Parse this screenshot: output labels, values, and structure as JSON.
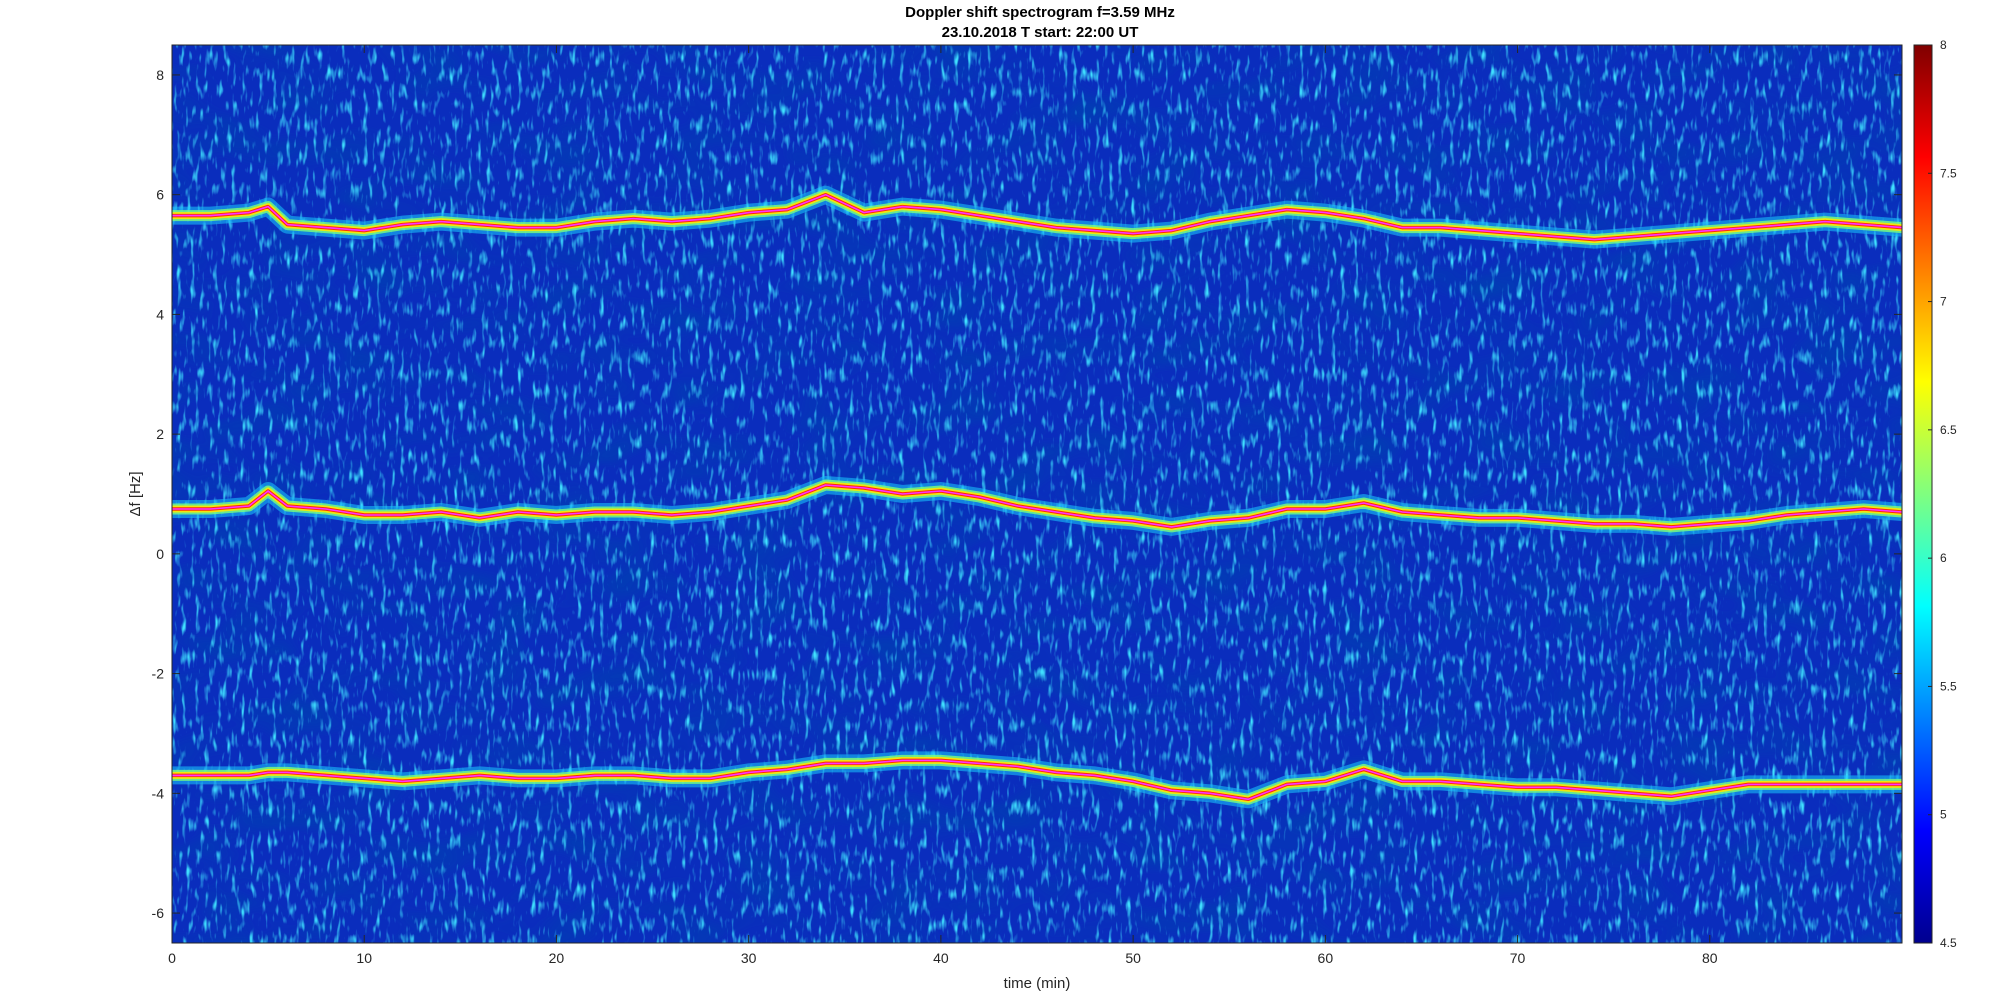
{
  "chart_data": {
    "type": "heatmap",
    "title_line1": "Doppler shift spectrogram f=3.59 MHz",
    "title_line2": "23.10.2018    T start: 22:00 UT",
    "xlabel": "time (min)",
    "ylabel": "Δf [Hz]",
    "xlim": [
      0,
      90
    ],
    "ylim": [
      -6.5,
      8.5
    ],
    "xticks": [
      0,
      10,
      20,
      30,
      40,
      50,
      60,
      70,
      80
    ],
    "yticks": [
      -6,
      -4,
      -2,
      0,
      2,
      4,
      6,
      8
    ],
    "colormap": "jet",
    "clim": [
      4.5,
      8
    ],
    "colorbar_ticks": [
      4.5,
      5,
      5.5,
      6,
      6.5,
      7,
      7.5,
      8
    ],
    "background_color": "#0a2dbd",
    "trace_color": "#ff33ff",
    "traces": [
      {
        "time": [
          0,
          2,
          4,
          5,
          6,
          8,
          10,
          12,
          14,
          16,
          18,
          20,
          22,
          24,
          26,
          28,
          30,
          32,
          34,
          36,
          38,
          40,
          42,
          44,
          46,
          48,
          50,
          52,
          54,
          56,
          58,
          60,
          62,
          64,
          66,
          68,
          70,
          72,
          74,
          76,
          78,
          80,
          82,
          84,
          86,
          88,
          90
        ],
        "df": [
          5.65,
          5.65,
          5.7,
          5.8,
          5.5,
          5.45,
          5.4,
          5.5,
          5.55,
          5.5,
          5.45,
          5.45,
          5.55,
          5.6,
          5.55,
          5.6,
          5.7,
          5.75,
          6.0,
          5.7,
          5.8,
          5.75,
          5.65,
          5.55,
          5.45,
          5.4,
          5.35,
          5.4,
          5.55,
          5.65,
          5.75,
          5.7,
          5.6,
          5.45,
          5.45,
          5.4,
          5.35,
          5.3,
          5.25,
          5.3,
          5.35,
          5.4,
          5.45,
          5.5,
          5.55,
          5.5,
          5.45
        ]
      },
      {
        "time": [
          0,
          2,
          4,
          5,
          6,
          8,
          10,
          12,
          14,
          16,
          18,
          20,
          22,
          24,
          26,
          28,
          30,
          32,
          34,
          36,
          38,
          40,
          42,
          44,
          46,
          48,
          50,
          52,
          54,
          56,
          58,
          60,
          62,
          64,
          66,
          68,
          70,
          72,
          74,
          76,
          78,
          80,
          82,
          84,
          86,
          88,
          90
        ],
        "df": [
          0.75,
          0.75,
          0.8,
          1.05,
          0.8,
          0.75,
          0.65,
          0.65,
          0.7,
          0.6,
          0.7,
          0.65,
          0.7,
          0.7,
          0.65,
          0.7,
          0.8,
          0.9,
          1.15,
          1.1,
          1.0,
          1.05,
          0.95,
          0.8,
          0.7,
          0.6,
          0.55,
          0.45,
          0.55,
          0.6,
          0.75,
          0.75,
          0.85,
          0.7,
          0.65,
          0.6,
          0.6,
          0.55,
          0.5,
          0.5,
          0.45,
          0.5,
          0.55,
          0.65,
          0.7,
          0.75,
          0.7
        ]
      },
      {
        "time": [
          0,
          2,
          4,
          5,
          6,
          8,
          10,
          12,
          14,
          16,
          18,
          20,
          22,
          24,
          26,
          28,
          30,
          32,
          34,
          36,
          38,
          40,
          42,
          44,
          46,
          48,
          50,
          52,
          54,
          56,
          58,
          60,
          62,
          64,
          66,
          68,
          70,
          72,
          74,
          76,
          78,
          80,
          82,
          84,
          86,
          88,
          90
        ],
        "df": [
          -3.7,
          -3.7,
          -3.7,
          -3.65,
          -3.65,
          -3.7,
          -3.75,
          -3.8,
          -3.75,
          -3.7,
          -3.75,
          -3.75,
          -3.7,
          -3.7,
          -3.75,
          -3.75,
          -3.65,
          -3.6,
          -3.5,
          -3.5,
          -3.45,
          -3.45,
          -3.5,
          -3.55,
          -3.65,
          -3.7,
          -3.8,
          -3.95,
          -4.0,
          -4.1,
          -3.85,
          -3.8,
          -3.6,
          -3.8,
          -3.8,
          -3.85,
          -3.9,
          -3.9,
          -3.95,
          -4.0,
          -4.05,
          -3.95,
          -3.85,
          -3.85,
          -3.85,
          -3.85,
          -3.85
        ]
      }
    ]
  }
}
